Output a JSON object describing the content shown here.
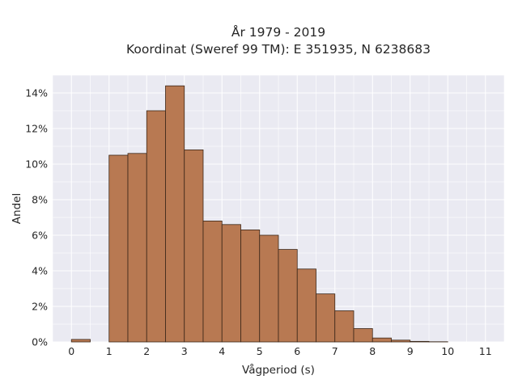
{
  "chart_data": {
    "type": "bar",
    "title_lines": [
      "År 1979 - 2019",
      "Koordinat (Sweref 99 TM): E 351935, N 6238683"
    ],
    "xlabel": "Vågperiod (s)",
    "ylabel": "Andel",
    "bin_width": 0.5,
    "bin_starts": [
      0,
      0.5,
      1,
      1.5,
      2,
      2.5,
      3,
      3.5,
      4,
      4.5,
      5,
      5.5,
      6,
      6.5,
      7,
      7.5,
      8,
      8.5,
      9,
      9.5,
      10,
      10.5
    ],
    "values": [
      0.14,
      0,
      10.5,
      10.6,
      13.0,
      14.4,
      10.8,
      6.8,
      6.6,
      6.3,
      6.0,
      5.2,
      4.1,
      2.7,
      1.75,
      0.75,
      0.22,
      0.1,
      0.03,
      0.01,
      0,
      0
    ],
    "xlim": [
      -0.5,
      11.5
    ],
    "ylim": [
      0,
      15
    ],
    "xticks": [
      0,
      1,
      2,
      3,
      4,
      5,
      6,
      7,
      8,
      9,
      10,
      11
    ],
    "yticks": [
      0,
      2,
      4,
      6,
      8,
      10,
      12,
      14
    ],
    "ytick_suffix": "%",
    "grid": true,
    "colors": {
      "bar_fill": "#b87952",
      "bar_edge": "#3a2618",
      "plot_bg": "#eaeaf2",
      "grid": "#ffffff"
    }
  }
}
